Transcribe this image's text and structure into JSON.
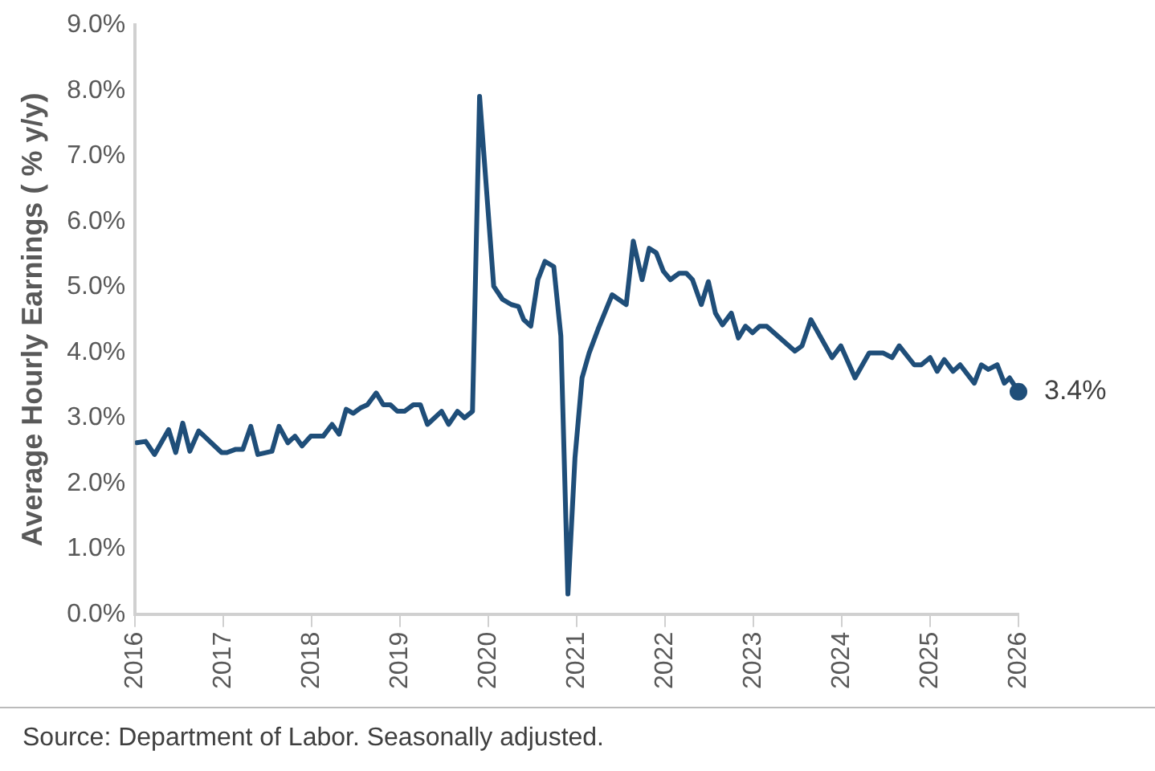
{
  "chart_data": {
    "type": "line",
    "ylabel": "Average Hourly Earnings ( % y/y)",
    "x": [
      2016.02,
      2016.12,
      2016.22,
      2016.38,
      2016.46,
      2016.54,
      2016.62,
      2016.72,
      2016.98,
      2017.04,
      2017.14,
      2017.22,
      2017.31,
      2017.39,
      2017.55,
      2017.63,
      2017.73,
      2017.81,
      2017.89,
      2017.99,
      2018.13,
      2018.23,
      2018.31,
      2018.39,
      2018.47,
      2018.55,
      2018.63,
      2018.73,
      2018.81,
      2018.89,
      2018.97,
      2019.05,
      2019.15,
      2019.23,
      2019.31,
      2019.47,
      2019.55,
      2019.65,
      2019.73,
      2019.82,
      2019.9,
      2020.06,
      2020.16,
      2020.26,
      2020.34,
      2020.4,
      2020.48,
      2020.56,
      2020.64,
      2020.74,
      2020.82,
      2020.9,
      2020.98,
      2021.06,
      2021.14,
      2021.24,
      2021.4,
      2021.56,
      2021.64,
      2021.74,
      2021.82,
      2021.9,
      2021.98,
      2022.06,
      2022.16,
      2022.24,
      2022.31,
      2022.41,
      2022.49,
      2022.57,
      2022.65,
      2022.75,
      2022.83,
      2022.91,
      2022.99,
      2023.07,
      2023.15,
      2023.47,
      2023.55,
      2023.65,
      2023.89,
      2023.99,
      2024.15,
      2024.31,
      2024.47,
      2024.57,
      2024.65,
      2024.82,
      2024.9,
      2025.0,
      2025.08,
      2025.16,
      2025.26,
      2025.34,
      2025.5,
      2025.58,
      2025.66,
      2025.76,
      2025.84,
      2025.9,
      2026.0
    ],
    "series": [
      {
        "color": "#1f4e79",
        "values": [
          2.62,
          2.64,
          2.44,
          2.82,
          2.47,
          2.92,
          2.49,
          2.8,
          2.47,
          2.47,
          2.52,
          2.52,
          2.87,
          2.44,
          2.49,
          2.87,
          2.62,
          2.72,
          2.57,
          2.72,
          2.72,
          2.9,
          2.75,
          3.13,
          3.07,
          3.15,
          3.2,
          3.38,
          3.2,
          3.2,
          3.1,
          3.1,
          3.2,
          3.2,
          2.9,
          3.1,
          2.9,
          3.1,
          3.0,
          3.1,
          7.91,
          5.01,
          4.81,
          4.73,
          4.7,
          4.5,
          4.4,
          5.11,
          5.39,
          5.31,
          4.25,
          0.31,
          2.39,
          3.61,
          3.99,
          4.35,
          4.88,
          4.73,
          5.7,
          5.11,
          5.59,
          5.52,
          5.24,
          5.11,
          5.21,
          5.21,
          5.11,
          4.73,
          5.08,
          4.6,
          4.42,
          4.6,
          4.22,
          4.4,
          4.3,
          4.4,
          4.4,
          4.02,
          4.1,
          4.5,
          3.92,
          4.1,
          3.61,
          3.99,
          3.99,
          3.92,
          4.1,
          3.81,
          3.81,
          3.92,
          3.71,
          3.89,
          3.71,
          3.81,
          3.53,
          3.81,
          3.74,
          3.81,
          3.53,
          3.61,
          3.4
        ]
      }
    ],
    "xlim": [
      2016,
      2026
    ],
    "xticks": [
      2016,
      2017,
      2018,
      2019,
      2020,
      2021,
      2022,
      2023,
      2024,
      2025,
      2026
    ],
    "ylim": [
      0,
      9
    ],
    "yticks": [
      {
        "value": 0,
        "label": "0.0%"
      },
      {
        "value": 1,
        "label": "1.0%"
      },
      {
        "value": 2,
        "label": "2.0%"
      },
      {
        "value": 3,
        "label": "3.0%"
      },
      {
        "value": 4,
        "label": "4.0%"
      },
      {
        "value": 5,
        "label": "5.0%"
      },
      {
        "value": 6,
        "label": "6.0%"
      },
      {
        "value": 7,
        "label": "7.0%"
      },
      {
        "value": 8,
        "label": "8.0%"
      },
      {
        "value": 9,
        "label": "9.0%"
      }
    ],
    "grid": false,
    "legend": false,
    "marker": "none",
    "line_style": "solid",
    "annotations": [
      {
        "text": "3.4%",
        "x": 2026,
        "y": 3.4
      },
      "Source: Department of Labor. Seasonally adjusted."
    ]
  }
}
